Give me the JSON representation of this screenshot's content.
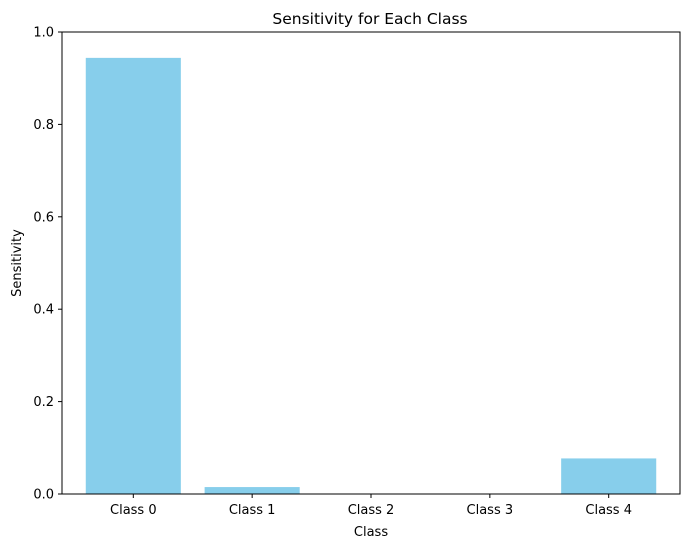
{
  "chart_data": {
    "type": "bar",
    "title": "Sensitivity for Each Class",
    "xlabel": "Class",
    "ylabel": "Sensitivity",
    "categories": [
      "Class 0",
      "Class 1",
      "Class 2",
      "Class 3",
      "Class 4"
    ],
    "values": [
      0.944,
      0.015,
      0.0,
      0.0,
      0.077
    ],
    "ylim": [
      0,
      1.0
    ],
    "yticks": [
      0.0,
      0.2,
      0.4,
      0.6,
      0.8,
      1.0
    ],
    "ytick_labels": [
      "0.0",
      "0.2",
      "0.4",
      "0.6",
      "0.8",
      "1.0"
    ],
    "bar_color": "#87ceeb",
    "grid": false,
    "legend": false
  }
}
